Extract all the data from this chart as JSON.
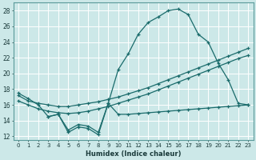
{
  "xlabel": "Humidex (Indice chaleur)",
  "xlim": [
    -0.5,
    23.5
  ],
  "ylim": [
    11.5,
    29
  ],
  "yticks": [
    12,
    14,
    16,
    18,
    20,
    22,
    24,
    26,
    28
  ],
  "xticks": [
    0,
    1,
    2,
    3,
    4,
    5,
    6,
    7,
    8,
    9,
    10,
    11,
    12,
    13,
    14,
    15,
    16,
    17,
    18,
    19,
    20,
    21,
    22,
    23
  ],
  "bg_color": "#cce8e8",
  "grid_color": "#aacccc",
  "line_color": "#1a6b6b",
  "line1_x": [
    0,
    1,
    2,
    3,
    4,
    5,
    6,
    7,
    8,
    9,
    10,
    11,
    12,
    13,
    14,
    15,
    16,
    17,
    18,
    19,
    20,
    21,
    22,
    23
  ],
  "line1_y": [
    17.5,
    16.8,
    16.0,
    14.5,
    14.8,
    12.5,
    13.2,
    13.0,
    12.2,
    16.2,
    20.5,
    22.5,
    25.0,
    26.5,
    27.2,
    28.0,
    28.2,
    27.5,
    25.0,
    24.0,
    21.3,
    19.2,
    16.2,
    16.0
  ],
  "line2_x": [
    0,
    1,
    2,
    3,
    4,
    5,
    6,
    7,
    8,
    9,
    10,
    11,
    12,
    13,
    14,
    15,
    16,
    17,
    18,
    19,
    20,
    21,
    22,
    23
  ],
  "line2_y": [
    17.2,
    16.5,
    16.2,
    16.0,
    15.8,
    15.8,
    16.0,
    16.2,
    16.4,
    16.7,
    17.0,
    17.4,
    17.8,
    18.2,
    18.7,
    19.2,
    19.7,
    20.2,
    20.7,
    21.2,
    21.7,
    22.2,
    22.7,
    23.2
  ],
  "line3_x": [
    0,
    1,
    2,
    3,
    4,
    5,
    6,
    7,
    8,
    9,
    10,
    11,
    12,
    13,
    14,
    15,
    16,
    17,
    18,
    19,
    20,
    21,
    22,
    23
  ],
  "line3_y": [
    16.5,
    16.0,
    15.5,
    15.2,
    15.0,
    14.9,
    15.0,
    15.2,
    15.5,
    15.8,
    16.2,
    16.6,
    17.0,
    17.4,
    17.9,
    18.4,
    18.9,
    19.4,
    19.9,
    20.4,
    20.9,
    21.4,
    21.9,
    22.3
  ],
  "line4_x": [
    0,
    1,
    2,
    3,
    4,
    5,
    6,
    7,
    8,
    9,
    10,
    11,
    12,
    13,
    14,
    15,
    16,
    17,
    18,
    19,
    20,
    21,
    22,
    23
  ],
  "line4_y": [
    null,
    null,
    null,
    14.5,
    14.8,
    12.8,
    13.5,
    13.3,
    12.5,
    16.2,
    14.8,
    14.8,
    14.9,
    15.0,
    15.1,
    15.2,
    15.3,
    15.4,
    15.5,
    15.6,
    15.7,
    15.8,
    15.9,
    16.0
  ]
}
